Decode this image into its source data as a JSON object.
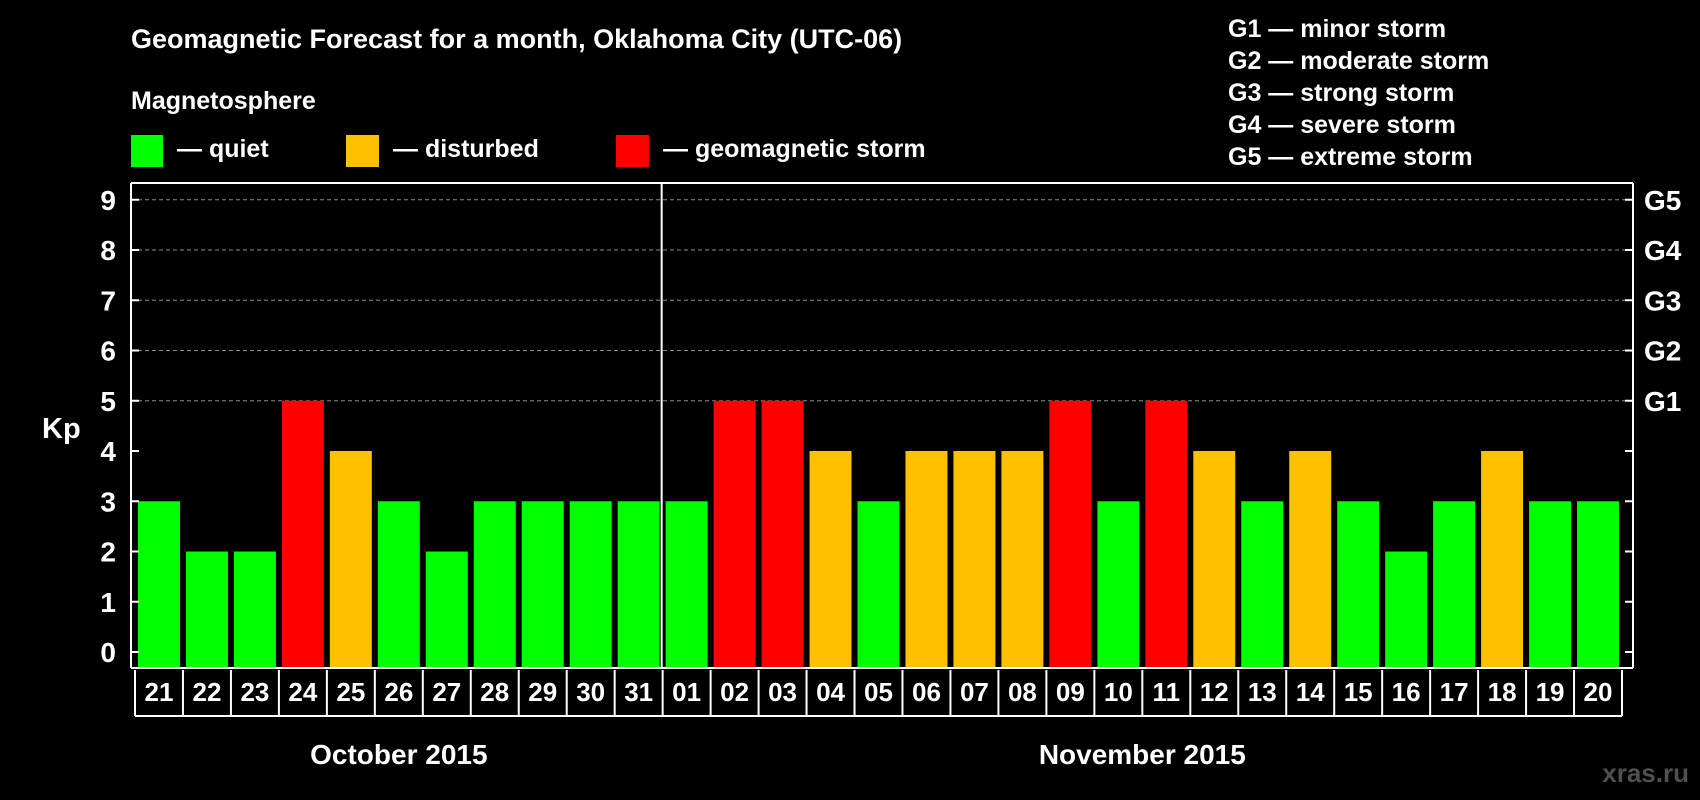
{
  "title": "Geomagnetic Forecast for a month, Oklahoma City (UTC-06)",
  "legend": {
    "heading": "Magnetosphere",
    "items": [
      {
        "label": "— quiet",
        "color": "#00ff00"
      },
      {
        "label": "— disturbed",
        "color": "#ffc000"
      },
      {
        "label": "— geomagnetic storm",
        "color": "#ff0000"
      }
    ]
  },
  "storm_scale": [
    "G1 — minor storm",
    "G2 — moderate storm",
    "G3 — strong storm",
    "G4 — severe storm",
    "G5 — extreme storm"
  ],
  "watermark": "xras.ru",
  "chart_data": {
    "type": "bar",
    "ylabel": "Kp",
    "ylim": [
      0,
      9
    ],
    "yticks": [
      0,
      1,
      2,
      3,
      4,
      5,
      6,
      7,
      8,
      9
    ],
    "right_ticks": [
      {
        "value": 5,
        "label": "G1"
      },
      {
        "value": 6,
        "label": "G2"
      },
      {
        "value": 7,
        "label": "G3"
      },
      {
        "value": 8,
        "label": "G4"
      },
      {
        "value": 9,
        "label": "G5"
      }
    ],
    "categories": [
      "21",
      "22",
      "23",
      "24",
      "25",
      "26",
      "27",
      "28",
      "29",
      "30",
      "31",
      "01",
      "02",
      "03",
      "04",
      "05",
      "06",
      "07",
      "08",
      "09",
      "10",
      "11",
      "12",
      "13",
      "14",
      "15",
      "16",
      "17",
      "18",
      "19",
      "20"
    ],
    "values": [
      3,
      2,
      2,
      5,
      4,
      3,
      2,
      3,
      3,
      3,
      3,
      3,
      5,
      5,
      4,
      3,
      4,
      4,
      4,
      5,
      3,
      5,
      4,
      3,
      4,
      3,
      2,
      3,
      4,
      3,
      3
    ],
    "months": [
      {
        "label": "October 2015",
        "start_index": 0,
        "end_index": 10
      },
      {
        "label": "November 2015",
        "start_index": 11,
        "end_index": 30
      }
    ],
    "color_rules": {
      "quiet_max": 3,
      "disturbed": 4,
      "storm_min": 5
    },
    "grid": "dashed horizontal at 5-9"
  }
}
